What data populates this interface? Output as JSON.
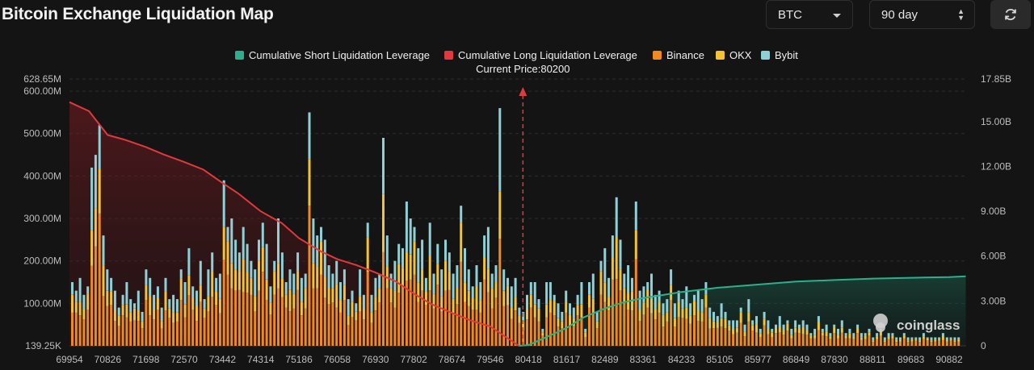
{
  "header": {
    "title": "Bitcoin Exchange Liquidation Map",
    "coin_select": "BTC",
    "range_select": "90 day",
    "refresh_icon": "refresh-icon"
  },
  "colors": {
    "short_cum": "#2ab08b",
    "long_cum": "#e0393e",
    "binance": "#f08a1c",
    "okx": "#f5c230",
    "bybit": "#8fd0d6"
  },
  "watermark": "coinglass",
  "chart_data": {
    "type": "bar",
    "title": "",
    "current_price_label": "Current Price:80200",
    "current_price": 80200,
    "legend": [
      {
        "name": "Cumulative Short Liquidation Leverage",
        "color": "#2ab08b"
      },
      {
        "name": "Cumulative Long Liquidation Leverage",
        "color": "#e0393e"
      },
      {
        "name": "Binance",
        "color": "#f08a1c"
      },
      {
        "name": "OKX",
        "color": "#f5c230"
      },
      {
        "name": "Bybit",
        "color": "#8fd0d6"
      }
    ],
    "legend_position": "top-center",
    "x_tick_labels": [
      "69954",
      "70826",
      "71698",
      "72570",
      "73442",
      "74314",
      "75186",
      "76058",
      "76930",
      "77802",
      "78674",
      "79546",
      "80418",
      "81617",
      "82489",
      "83361",
      "84233",
      "85105",
      "85977",
      "86849",
      "87830",
      "88811",
      "89683",
      "90882"
    ],
    "y_left": {
      "ticks": [
        "139.25K",
        "100.00M",
        "200.00M",
        "300.00M",
        "400.00M",
        "500.00M",
        "600.00M"
      ],
      "top_label": "628.65M",
      "range": [
        0.13925,
        628.65
      ],
      "unit": "M"
    },
    "y_right": {
      "ticks": [
        "0",
        "3.00B",
        "6.00B",
        "9.00B",
        "12.00B",
        "15.00B"
      ],
      "top_label": "17.85B",
      "range": [
        0,
        17.85
      ],
      "unit": "B"
    },
    "bars_totals_M": [
      150,
      130,
      160,
      120,
      140,
      420,
      450,
      520,
      260,
      180,
      160,
      130,
      90,
      120,
      150,
      110,
      100,
      130,
      80,
      180,
      160,
      120,
      140,
      90,
      160,
      110,
      120,
      110,
      180,
      150,
      230,
      140,
      130,
      200,
      110,
      180,
      220,
      160,
      170,
      390,
      280,
      300,
      250,
      220,
      280,
      240,
      200,
      180,
      250,
      290,
      240,
      140,
      200,
      300,
      220,
      150,
      180,
      170,
      220,
      160,
      170,
      550,
      300,
      260,
      280,
      250,
      190,
      170,
      200,
      150,
      180,
      110,
      130,
      100,
      180,
      120,
      290,
      120,
      160,
      170,
      490,
      260,
      170,
      200,
      240,
      230,
      340,
      300,
      280,
      230,
      250,
      160,
      290,
      170,
      240,
      180,
      250,
      220,
      170,
      190,
      330,
      230,
      180,
      140,
      190,
      150,
      260,
      280,
      170,
      190,
      560,
      180,
      160,
      140,
      160,
      90,
      80,
      120,
      150,
      150,
      110,
      40,
      150,
      150,
      120,
      100,
      80,
      130,
      100,
      90,
      120,
      150,
      40,
      150,
      170,
      80,
      200,
      230,
      160,
      260,
      350,
      250,
      170,
      190,
      160,
      340,
      130,
      140,
      150,
      170,
      120,
      130,
      100,
      110,
      180,
      100,
      130,
      110,
      140,
      100,
      120,
      130,
      110,
      150,
      90,
      80,
      70,
      100,
      80,
      60,
      60,
      60,
      90,
      50,
      110,
      60,
      70,
      40,
      80,
      60,
      40,
      50,
      70,
      50,
      60,
      40,
      60,
      50,
      60,
      50,
      30,
      40,
      70,
      40,
      50,
      30,
      50,
      40,
      60,
      30,
      40,
      30,
      50,
      30,
      30,
      40,
      20,
      30,
      40,
      20,
      30,
      30,
      20,
      20,
      30,
      20,
      20,
      20,
      20,
      30,
      20,
      20,
      20,
      20,
      30,
      20,
      20,
      20,
      20
    ],
    "series": [
      {
        "name": "Cumulative Long Liquidation Leverage",
        "x": [
          69954,
          70400,
          70826,
          71200,
          71698,
          72100,
          72570,
          73000,
          73442,
          73800,
          74314,
          74800,
          75186,
          75700,
          76058,
          76500,
          76930,
          77400,
          77802,
          78200,
          78674,
          79100,
          79546,
          79900,
          80200
        ],
        "y": [
          16.3,
          15.7,
          14.1,
          13.8,
          13.3,
          12.8,
          12.3,
          11.8,
          10.9,
          10.2,
          9.0,
          8.2,
          7.2,
          6.3,
          5.8,
          5.4,
          4.9,
          4.3,
          3.5,
          2.8,
          2.2,
          1.7,
          1.3,
          0.6,
          0.0
        ]
      },
      {
        "name": "Cumulative Short Liquidation Leverage",
        "x": [
          80200,
          80418,
          80900,
          81617,
          82000,
          82489,
          82900,
          83361,
          83800,
          84233,
          85105,
          85977,
          86849,
          87830,
          88811,
          89683,
          90882,
          91400
        ],
        "y": [
          0.0,
          0.05,
          0.5,
          1.2,
          1.9,
          2.5,
          2.9,
          3.2,
          3.4,
          3.6,
          3.9,
          4.1,
          4.3,
          4.4,
          4.5,
          4.55,
          4.6,
          4.65
        ]
      }
    ]
  }
}
